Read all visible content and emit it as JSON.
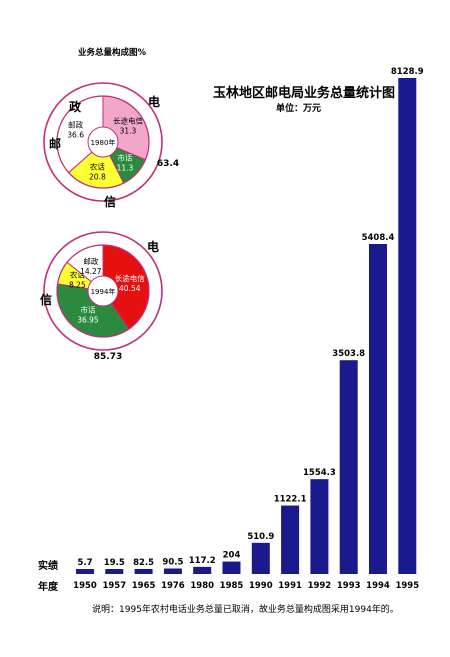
{
  "title": "玉林地区邮电局业务总量统计图",
  "unit": "单位：万元",
  "pie_title": "业务总量构成图%",
  "row_label_value": "实绩",
  "row_label_year": "年度",
  "note": "说明：1995年农村电话业务总量已取消，故业务总量构成图采用1994年的。",
  "colors": {
    "bar": "#1a1a8c",
    "ring": "#c0307a",
    "pink": "#f2a7c9",
    "green": "#2b8a3e",
    "yellow": "#ffff33",
    "red": "#e51010"
  },
  "chart_data": [
    {
      "type": "bar",
      "categories": [
        "1950",
        "1957",
        "1965",
        "1976",
        "1980",
        "1985",
        "1990",
        "1991",
        "1992",
        "1993",
        "1994",
        "1995"
      ],
      "values": [
        5.7,
        19.5,
        82.5,
        90.5,
        117.2,
        204,
        510.9,
        1122.1,
        1554.3,
        3503.8,
        5408.4,
        8128.9
      ],
      "value_labels": [
        "5.7",
        "19.5",
        "82.5",
        "90.5",
        "117.2",
        "204",
        "510.9",
        "1122.1",
        "1554.3",
        "3503.8",
        "5408.4",
        "8128.9"
      ],
      "title": "玉林地区邮电局业务总量统计图",
      "ylabel": "单位：万元",
      "ylim": [
        0,
        8300
      ]
    },
    {
      "type": "pie",
      "center_label": "1980年",
      "slices": [
        {
          "label": "长途电信",
          "value": 31.3,
          "value_label": "31.3",
          "color": "#f2a7c9"
        },
        {
          "label": "市话",
          "value": 11.3,
          "value_label": "11.3",
          "color": "#2b8a3e"
        },
        {
          "label": "农话",
          "value": 20.8,
          "value_label": "20.8",
          "color": "#ffff33"
        },
        {
          "label": "邮政",
          "value": 36.6,
          "value_label": "36.6",
          "color": "#ffffff"
        }
      ],
      "ring_labels": {
        "dian": "电",
        "xin": "信",
        "you": "邮",
        "zheng": "政"
      },
      "telecom_total": "63.4"
    },
    {
      "type": "pie",
      "center_label": "1994年",
      "slices": [
        {
          "label": "长途电信",
          "value": 40.54,
          "value_label": "40.54",
          "color": "#e51010"
        },
        {
          "label": "市话",
          "value": 36.95,
          "value_label": "36.95",
          "color": "#2b8a3e"
        },
        {
          "label": "农话",
          "value": 8.25,
          "value_label": "8.25",
          "color": "#ffff33"
        },
        {
          "label": "邮政",
          "value": 14.27,
          "value_label": "14.27",
          "color": "#ffffff"
        }
      ],
      "ring_labels": {
        "dian": "电",
        "xin": "信"
      },
      "telecom_total": "85.73"
    }
  ]
}
